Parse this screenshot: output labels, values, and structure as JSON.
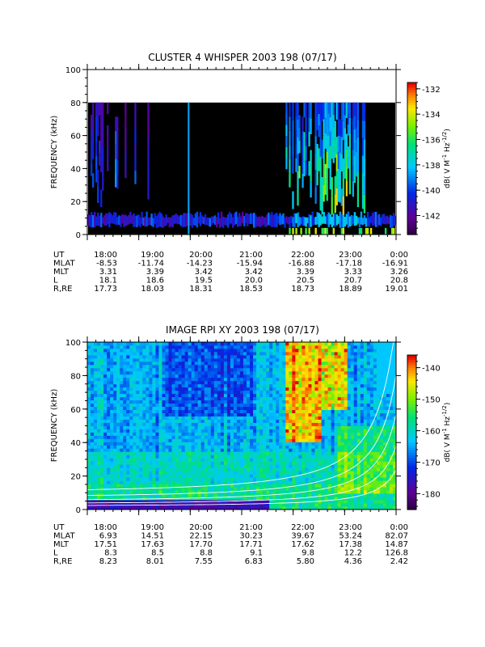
{
  "chart_data": [
    {
      "type": "heatmap",
      "title": "CLUSTER 4 WHISPER 2003 198 (07/17)",
      "ylabel": "FREQUENCY (kHz)",
      "ylim": [
        0,
        100
      ],
      "yticks": [
        "0",
        "20",
        "40",
        "60",
        "80",
        "100"
      ],
      "xticks": [
        "18:00",
        "19:00",
        "20:00",
        "21:00",
        "22:00",
        "23:00",
        "0:00"
      ],
      "x_range_hours": [
        18,
        24
      ],
      "data_top_kHz": 80,
      "colorbar": {
        "label": "dB( V M-1 Hz-1/2)",
        "range": [
          -143.5,
          -131.5
        ],
        "ticks": [
          "-132",
          "-134",
          "-136",
          "-138",
          "-140",
          "-142"
        ],
        "tick_values": [
          -132,
          -134,
          -136,
          -138,
          -140,
          -142
        ]
      },
      "ephemeris": {
        "labels": [
          "UT",
          "MLAT",
          "MLT",
          "L",
          "R,RE"
        ],
        "rows": [
          [
            "-8.53",
            "-11.74",
            "-14.23",
            "-15.94",
            "-16.88",
            "-17.18",
            "-16.91"
          ],
          [
            "3.31",
            "3.39",
            "3.42",
            "3.42",
            "3.39",
            "3.33",
            "3.26"
          ],
          [
            "18.1",
            "18.6",
            "19.5",
            "20.0",
            "20.5",
            "20.7",
            "20.8"
          ],
          [
            "17.73",
            "18.03",
            "18.31",
            "18.53",
            "18.73",
            "18.89",
            "19.01"
          ]
        ]
      }
    },
    {
      "type": "heatmap",
      "title": "IMAGE RPI XY 2003 198 (07/17)",
      "ylabel": "FREQUENCY (kHz)",
      "ylim": [
        0,
        100
      ],
      "yticks": [
        "0",
        "20",
        "40",
        "60",
        "80",
        "100"
      ],
      "xticks": [
        "18:00",
        "19:00",
        "20:00",
        "21:00",
        "22:00",
        "23:00",
        "0:00"
      ],
      "x_range_hours": [
        18,
        24
      ],
      "colorbar": {
        "label": "dB( V M-1 Hz-1/2)",
        "range": [
          -185,
          -136
        ],
        "ticks": [
          "-140",
          "-150",
          "-160",
          "-170",
          "-180"
        ],
        "tick_values": [
          -140,
          -150,
          -160,
          -170,
          -180
        ]
      },
      "ephemeris": {
        "labels": [
          "UT",
          "MLAT",
          "MLT",
          "L",
          "R,RE"
        ],
        "rows": [
          [
            "6.93",
            "14.51",
            "22.15",
            "30.23",
            "39.67",
            "53.24",
            "82.07"
          ],
          [
            "17.51",
            "17.63",
            "17.70",
            "17.71",
            "17.62",
            "17.38",
            "14.87"
          ],
          [
            "8.3",
            "8.5",
            "8.8",
            "9.1",
            "9.8",
            "12.2",
            "126.8"
          ],
          [
            "8.23",
            "8.01",
            "7.55",
            "6.83",
            "5.80",
            "4.36",
            "2.42"
          ]
        ]
      }
    }
  ]
}
